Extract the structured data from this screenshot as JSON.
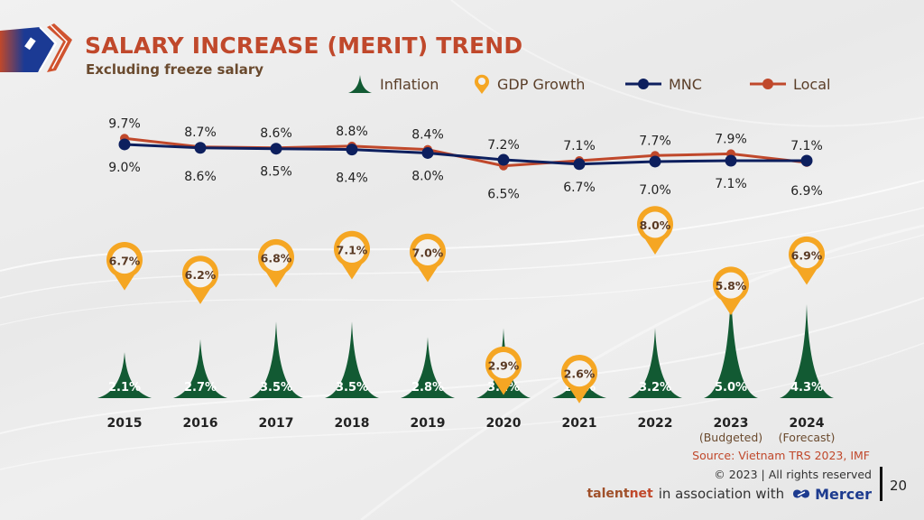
{
  "header": {
    "title": "SALARY INCREASE (MERIT) TREND",
    "subtitle": "Excluding freeze salary"
  },
  "legend": {
    "inflation": "Inflation",
    "gdp": "GDP Growth",
    "mnc": "MNC",
    "local": "Local"
  },
  "colors": {
    "title": "#c0482b",
    "subtitle": "#6a4a2e",
    "inflation": "#125a33",
    "gdp": "#f5a623",
    "mnc": "#0d1f5e",
    "local": "#c0482b"
  },
  "chart_data": {
    "type": "line",
    "title": "SALARY INCREASE (MERIT) TREND",
    "subtitle": "Excluding freeze salary",
    "xlabel": "",
    "ylabel": "",
    "unit": "%",
    "categories": [
      "2015",
      "2016",
      "2017",
      "2018",
      "2019",
      "2020",
      "2021",
      "2022",
      "2023",
      "2024"
    ],
    "category_notes": [
      "",
      "",
      "",
      "",
      "",
      "",
      "",
      "",
      "(Budgeted)",
      "(Forecast)"
    ],
    "series": [
      {
        "name": "MNC",
        "type": "line",
        "values": [
          9.0,
          8.6,
          8.5,
          8.4,
          8.0,
          7.2,
          6.7,
          7.0,
          7.1,
          7.1
        ]
      },
      {
        "name": "Local",
        "type": "line",
        "values": [
          9.7,
          8.7,
          8.6,
          8.8,
          8.4,
          6.5,
          7.1,
          7.7,
          7.9,
          6.9
        ]
      },
      {
        "name": "GDP Growth",
        "type": "pin",
        "values": [
          6.7,
          6.2,
          6.8,
          7.1,
          7.0,
          2.9,
          2.6,
          8.0,
          5.8,
          6.9
        ]
      },
      {
        "name": "Inflation",
        "type": "spike",
        "values": [
          2.1,
          2.7,
          3.5,
          3.5,
          2.8,
          3.2,
          1.8,
          3.2,
          5.0,
          4.3
        ]
      }
    ],
    "legend_position": "top",
    "grid": false
  },
  "footer": {
    "source": "Source: Vietnam TRS 2023, IMF",
    "copyright": "© 2023 | All rights reserved",
    "talentnet_a": "talent",
    "talentnet_b": "net",
    "association": "in association with",
    "mercer": "Mercer",
    "page_number": "20"
  }
}
